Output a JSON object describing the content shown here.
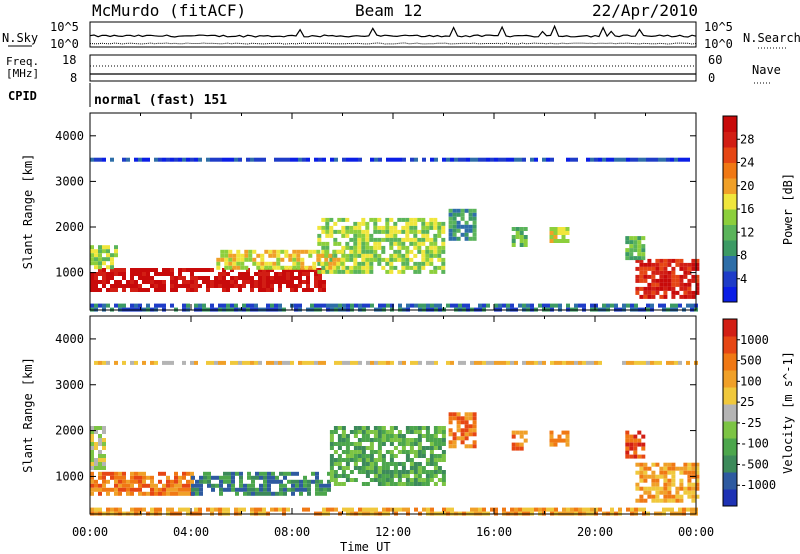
{
  "header": {
    "station": "McMurdo (fitACF)",
    "beam": "Beam 12",
    "date": "22/Apr/2010"
  },
  "strip_noise": {
    "left_label": "N.Sky",
    "right_label": "N.Search",
    "left_ticks": [
      "10^5",
      "10^0"
    ],
    "right_ticks": [
      "10^5",
      "10^0"
    ]
  },
  "strip_freq": {
    "left_label_1": "Freq.",
    "left_label_2": "[MHz]",
    "right_label": "Nave",
    "left_ticks": [
      "18",
      "8"
    ],
    "right_ticks": [
      "60",
      "0"
    ]
  },
  "strip_cpid": {
    "left_label": "CPID",
    "text": "normal (fast) 151"
  },
  "x_axis": {
    "ticks": [
      "00:00",
      "04:00",
      "08:00",
      "12:00",
      "16:00",
      "20:00",
      "00:00"
    ],
    "label": "Time UT"
  },
  "chart_data": [
    {
      "type": "heatmap",
      "name": "power",
      "ylabel": "Slant Range [km]",
      "ylim": [
        180,
        4500
      ],
      "y_ticks": [
        "4000",
        "3000",
        "2000",
        "1000"
      ],
      "xlim_hours": [
        0,
        24
      ],
      "colorbar": {
        "label": "Power [dB]",
        "ticks": [
          "28",
          "24",
          "20",
          "16",
          "12",
          "8",
          "4"
        ],
        "colors": [
          "#0a1ee6",
          "#1e3cc8",
          "#2e6ea8",
          "#3c9a64",
          "#5ab45a",
          "#8ccf3c",
          "#f0e63c",
          "#f0a028",
          "#f07814",
          "#e64614",
          "#d21e14",
          "#c80a0a"
        ]
      },
      "regions": [
        {
          "t0": 0.0,
          "t1": 9.2,
          "r0": 600,
          "r1": 1100,
          "level": 11
        },
        {
          "t0": 0.0,
          "t1": 1.0,
          "r0": 1100,
          "r1": 1600,
          "level": 5
        },
        {
          "t0": 9.0,
          "t1": 14.0,
          "r0": 1000,
          "r1": 2200,
          "level": 5
        },
        {
          "t0": 5.0,
          "t1": 10.0,
          "r0": 1100,
          "r1": 1500,
          "level": 6
        },
        {
          "t0": 14.2,
          "t1": 15.2,
          "r0": 1700,
          "r1": 2400,
          "level": 3
        },
        {
          "t0": 21.6,
          "t1": 24.0,
          "r0": 500,
          "r1": 1300,
          "level": 10
        },
        {
          "t0": 21.2,
          "t1": 21.9,
          "r0": 1300,
          "r1": 1800,
          "level": 4
        },
        {
          "t0": 18.2,
          "t1": 18.9,
          "r0": 1700,
          "r1": 2000,
          "level": 6
        },
        {
          "t0": 16.7,
          "t1": 17.3,
          "r0": 1600,
          "r1": 2000,
          "level": 4
        },
        {
          "t0": 0.0,
          "t1": 24.0,
          "r0": 3450,
          "r1": 3520,
          "level": 1
        },
        {
          "t0": 0.0,
          "t1": 24.0,
          "r0": 180,
          "r1": 320,
          "level": 2
        }
      ]
    },
    {
      "type": "heatmap",
      "name": "velocity",
      "ylabel": "Slant Range [km]",
      "ylim": [
        180,
        4500
      ],
      "y_ticks": [
        "4000",
        "3000",
        "2000",
        "1000"
      ],
      "xlim_hours": [
        0,
        24
      ],
      "colorbar": {
        "label": "Velocity [m s^-1]",
        "ticks": [
          "1000",
          "500",
          "100",
          "25",
          "-25",
          "-100",
          "-500",
          "-1000"
        ],
        "colors": [
          "#1e32b4",
          "#2e5aa0",
          "#3c8a5a",
          "#4ca64c",
          "#7cc444",
          "#b4b4b4",
          "#f0c83c",
          "#f0a028",
          "#f07814",
          "#e64614",
          "#d21e14"
        ]
      },
      "regions": [
        {
          "t0": 0.0,
          "t1": 4.0,
          "r0": 600,
          "r1": 1100,
          "level": 8
        },
        {
          "t0": 4.0,
          "t1": 9.5,
          "r0": 600,
          "r1": 1100,
          "level": 2
        },
        {
          "t0": 9.5,
          "t1": 14.0,
          "r0": 800,
          "r1": 2100,
          "level": 3
        },
        {
          "t0": 0.0,
          "t1": 0.6,
          "r0": 1200,
          "r1": 2100,
          "level": 5
        },
        {
          "t0": 14.2,
          "t1": 15.2,
          "r0": 1700,
          "r1": 2400,
          "level": 8
        },
        {
          "t0": 21.6,
          "t1": 24.0,
          "r0": 500,
          "r1": 1300,
          "level": 7
        },
        {
          "t0": 21.2,
          "t1": 21.9,
          "r0": 1400,
          "r1": 2000,
          "level": 9
        },
        {
          "t0": 18.2,
          "t1": 18.9,
          "r0": 1700,
          "r1": 2000,
          "level": 8
        },
        {
          "t0": 16.7,
          "t1": 17.3,
          "r0": 1600,
          "r1": 2000,
          "level": 8
        },
        {
          "t0": 0.0,
          "t1": 24.0,
          "r0": 3450,
          "r1": 3520,
          "level": 6
        },
        {
          "t0": 0.0,
          "t1": 24.0,
          "r0": 180,
          "r1": 320,
          "level": 7
        }
      ]
    }
  ]
}
